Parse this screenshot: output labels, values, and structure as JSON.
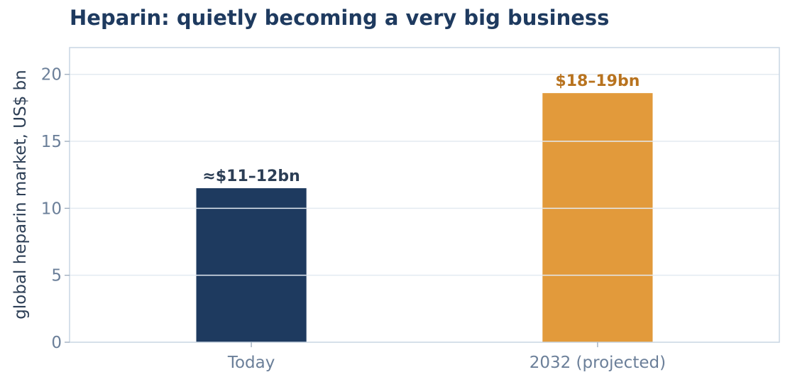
{
  "chart_data": {
    "type": "bar",
    "title": "Heparin: quietly becoming a very big business",
    "xlabel": "",
    "ylabel": "global heparin market, US$ bn",
    "categories": [
      "Today",
      "2032 (projected)"
    ],
    "values": [
      11.5,
      18.6
    ],
    "data_labels": [
      "≈$11–12bn",
      "$18–19bn"
    ],
    "colors": [
      "#1e3a5f",
      "#e29a3b"
    ],
    "label_colors": [
      "#2c3e55",
      "#b8731f"
    ],
    "ylim": [
      0,
      22
    ],
    "yticks": [
      0,
      5,
      10,
      15,
      20
    ],
    "grid": true
  }
}
